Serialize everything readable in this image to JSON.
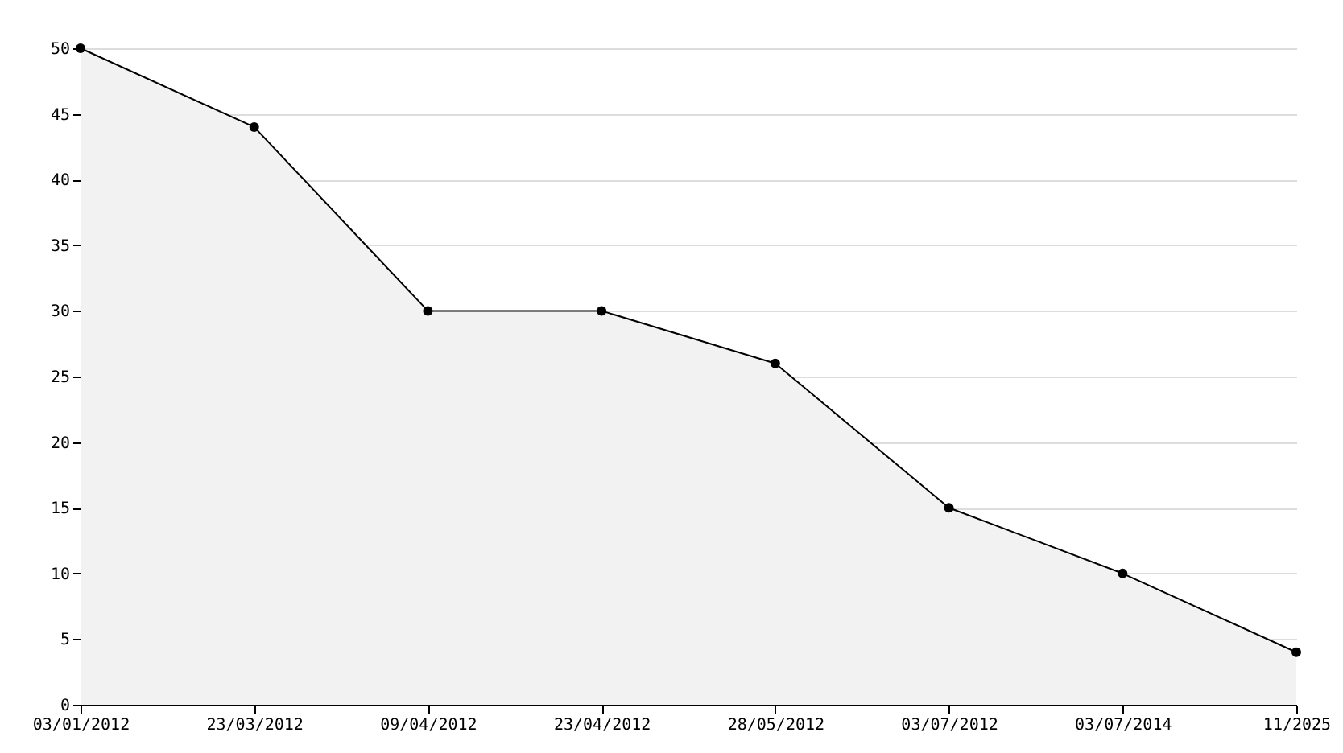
{
  "chart_data": {
    "type": "area",
    "categories": [
      "03/01/2012",
      "23/03/2012",
      "09/04/2012",
      "23/04/2012",
      "28/05/2012",
      "03/07/2012",
      "03/07/2014",
      "11/2025"
    ],
    "series": [
      {
        "color": "#f2f2f2",
        "values": [
          50,
          44,
          30,
          30,
          26,
          15,
          10,
          4
        ]
      }
    ],
    "ylim": [
      0,
      50
    ],
    "yticks": [
      0,
      5,
      10,
      15,
      20,
      25,
      30,
      35,
      40,
      45,
      50
    ],
    "grid": "y",
    "marker": "circle"
  }
}
